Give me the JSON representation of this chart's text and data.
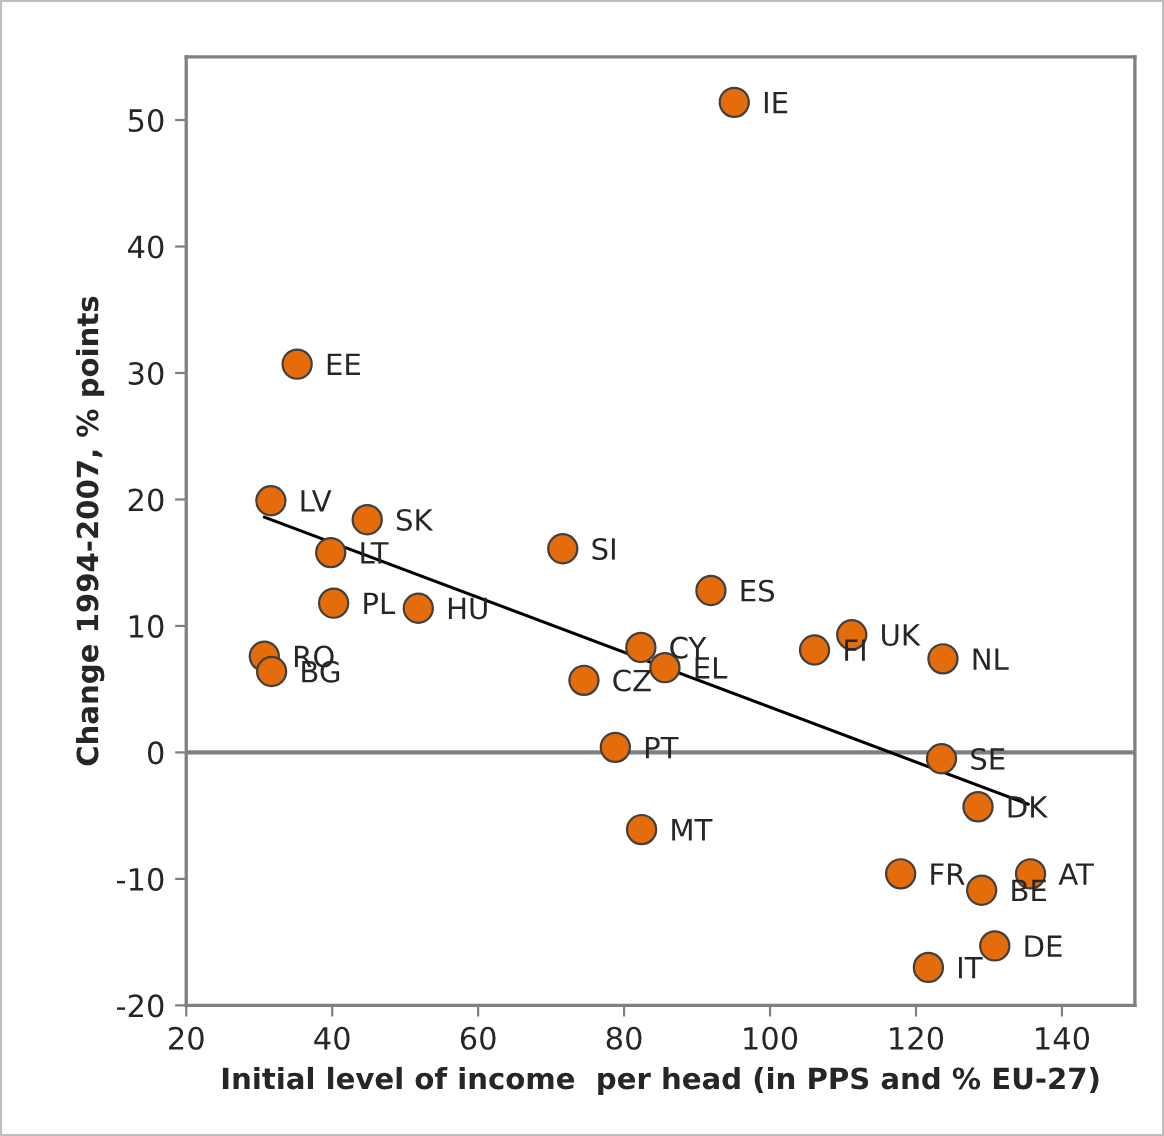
{
  "chart_data": {
    "type": "scatter",
    "xlabel": "Initial level of income  per head (in PPS and % EU-27)",
    "ylabel": "Change 1994-2007, % points",
    "xlim": [
      20,
      150
    ],
    "ylim": [
      -20,
      55
    ],
    "xticks": [
      20,
      40,
      60,
      80,
      100,
      120,
      140
    ],
    "yticks": [
      -20,
      -10,
      0,
      10,
      20,
      30,
      40,
      50
    ],
    "grid": false,
    "legend": false,
    "marker": "circle",
    "series": [
      {
        "color": "#e46c0a",
        "x": [
          95.1,
          35.2,
          31.6,
          44.8,
          39.8,
          71.6,
          40.2,
          51.8,
          30.7,
          31.7,
          91.9,
          111.2,
          106.1,
          123.7,
          82.3,
          85.6,
          74.5,
          78.8,
          123.5,
          128.5,
          82.4,
          117.9,
          135.7,
          129.0,
          130.8,
          121.7
        ],
        "values": [
          51.4,
          30.7,
          19.9,
          18.4,
          15.8,
          16.1,
          11.8,
          11.4,
          7.6,
          6.4,
          12.8,
          9.3,
          8.1,
          7.4,
          8.3,
          6.7,
          5.7,
          0.4,
          -0.5,
          -4.3,
          -6.1,
          -9.6,
          -9.6,
          -10.9,
          -15.3,
          -17.0
        ]
      },
      {
        "type": "line",
        "color": "#000000",
        "marker": "none",
        "x": [
          30.7,
          135.4
        ],
        "values": [
          18.6,
          -4.1
        ]
      }
    ],
    "ref_lines": [
      {
        "axis": "y",
        "value": 0,
        "color": "#808080"
      }
    ],
    "annotations": [
      {
        "text": "IE",
        "x": 95.1,
        "y": 51.4
      },
      {
        "text": "EE",
        "x": 35.2,
        "y": 30.7
      },
      {
        "text": "LV",
        "x": 31.6,
        "y": 19.9
      },
      {
        "text": "SK",
        "x": 44.8,
        "y": 18.4
      },
      {
        "text": "LT",
        "x": 39.8,
        "y": 15.8
      },
      {
        "text": "SI",
        "x": 71.6,
        "y": 16.1
      },
      {
        "text": "PL",
        "x": 40.2,
        "y": 11.8
      },
      {
        "text": "HU",
        "x": 51.8,
        "y": 11.4
      },
      {
        "text": "RO",
        "x": 30.7,
        "y": 7.6
      },
      {
        "text": "BG",
        "x": 31.7,
        "y": 6.4
      },
      {
        "text": "ES",
        "x": 91.9,
        "y": 12.8
      },
      {
        "text": "UK",
        "x": 111.2,
        "y": 9.3
      },
      {
        "text": "FI",
        "x": 106.1,
        "y": 8.1
      },
      {
        "text": "NL",
        "x": 123.7,
        "y": 7.4
      },
      {
        "text": "CY",
        "x": 82.3,
        "y": 8.3
      },
      {
        "text": "EL",
        "x": 85.6,
        "y": 6.7
      },
      {
        "text": "CZ",
        "x": 74.5,
        "y": 5.7
      },
      {
        "text": "PT",
        "x": 78.8,
        "y": 0.4
      },
      {
        "text": "SE",
        "x": 123.5,
        "y": -0.5
      },
      {
        "text": "DK",
        "x": 128.5,
        "y": -4.3
      },
      {
        "text": "MT",
        "x": 82.4,
        "y": -6.1
      },
      {
        "text": "FR",
        "x": 117.9,
        "y": -9.6
      },
      {
        "text": "AT",
        "x": 135.7,
        "y": -9.6
      },
      {
        "text": "BE",
        "x": 129.0,
        "y": -10.9
      },
      {
        "text": "DE",
        "x": 130.8,
        "y": -15.3
      },
      {
        "text": "IT",
        "x": 121.7,
        "y": -17.0
      }
    ]
  }
}
